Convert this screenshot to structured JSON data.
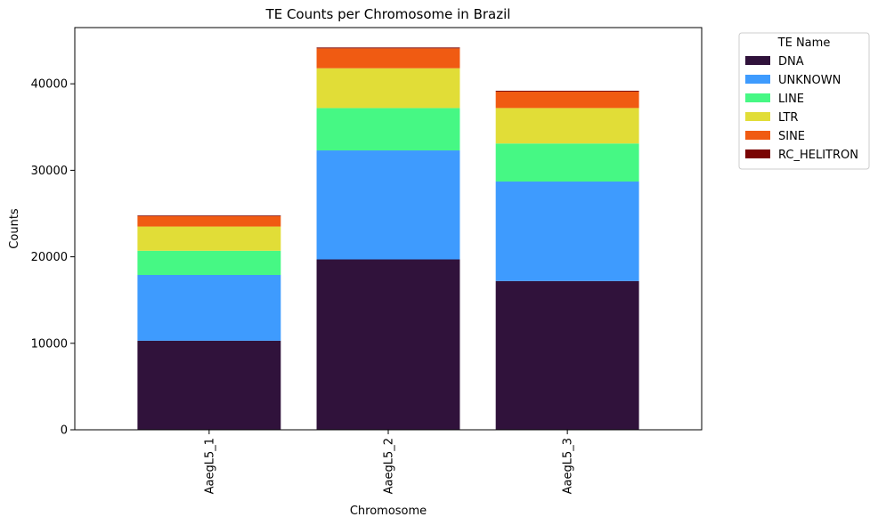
{
  "chart_data": {
    "type": "bar",
    "stacked": true,
    "title": "TE Counts per Chromosome in Brazil",
    "xlabel": "Chromosome",
    "ylabel": "Counts",
    "ylim": [
      0,
      46500
    ],
    "yticks": [
      0,
      10000,
      20000,
      30000,
      40000
    ],
    "categories": [
      "AaegL5_1",
      "AaegL5_2",
      "AaegL5_3"
    ],
    "legend": {
      "title": "TE Name",
      "placement": "outside-upper-right"
    },
    "series": [
      {
        "name": "DNA",
        "color": "#30123b",
        "values": [
          10300,
          19700,
          17200
        ]
      },
      {
        "name": "UNKNOWN",
        "color": "#3e9bfe",
        "values": [
          7600,
          12600,
          11500
        ]
      },
      {
        "name": "LINE",
        "color": "#46f884",
        "values": [
          2800,
          4900,
          4400
        ]
      },
      {
        "name": "LTR",
        "color": "#e1dd37",
        "values": [
          2800,
          4600,
          4100
        ]
      },
      {
        "name": "SINE",
        "color": "#f05b12",
        "values": [
          1200,
          2300,
          1900
        ]
      },
      {
        "name": "RC_HELITRON",
        "color": "#7a0403",
        "values": [
          80,
          100,
          100
        ]
      }
    ]
  }
}
